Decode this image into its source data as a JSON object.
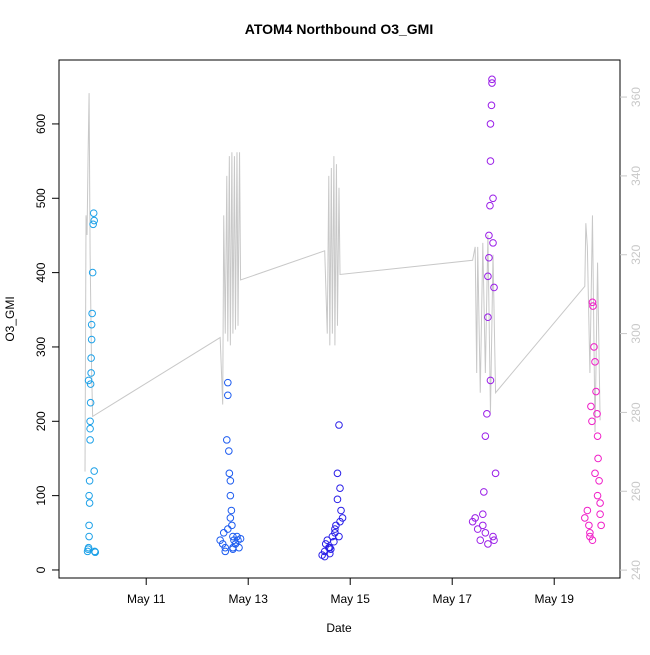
{
  "chart_data": {
    "type": "scatter",
    "title": "ATOM4 Northbound O3_GMI",
    "xlabel": "Date",
    "ylabel": "O3_GMI",
    "xlim": [
      9.29,
      20.29
    ],
    "xticks": [
      {
        "value": 11,
        "label": "May 11"
      },
      {
        "value": 13,
        "label": "May 13"
      },
      {
        "value": 15,
        "label": "May 15"
      },
      {
        "value": 17,
        "label": "May 17"
      },
      {
        "value": 19,
        "label": "May 19"
      }
    ],
    "ylim": [
      -10.8,
      686
    ],
    "yticks": [
      0,
      100,
      200,
      300,
      400,
      500,
      600
    ],
    "y2lim": [
      238,
      369.4
    ],
    "y2ticks": [
      240,
      260,
      280,
      300,
      320,
      340,
      360
    ],
    "series": [
      {
        "type": "scatter",
        "color": "#1da1e8",
        "x": [
          9.85,
          9.86,
          9.87,
          9.88,
          9.88,
          9.89,
          9.89,
          9.9,
          9.9,
          9.91,
          9.91,
          9.92,
          9.92,
          9.93,
          9.93,
          9.94,
          9.95,
          9.96,
          9.97,
          9.98,
          9.98,
          9.99,
          10.0,
          10.0,
          9.87,
          9.88,
          9.9
        ],
        "values": [
          25,
          28,
          30,
          45,
          60,
          90,
          120,
          175,
          200,
          225,
          250,
          265,
          285,
          310,
          330,
          345,
          400,
          465,
          480,
          470,
          133,
          25,
          24,
          24,
          255,
          100,
          190
        ]
      },
      {
        "type": "scatter",
        "color": "#1d5cf0",
        "x": [
          12.45,
          12.5,
          12.52,
          12.55,
          12.58,
          12.6,
          12.6,
          12.62,
          12.63,
          12.65,
          12.65,
          12.67,
          12.68,
          12.7,
          12.7,
          12.72,
          12.75,
          12.78,
          12.8,
          12.82,
          12.85,
          12.55,
          12.6,
          12.65,
          12.7
        ],
        "values": [
          40,
          35,
          50,
          30,
          175,
          252,
          235,
          160,
          130,
          120,
          100,
          80,
          60,
          45,
          30,
          40,
          35,
          45,
          40,
          30,
          42,
          25,
          55,
          70,
          28
        ]
      },
      {
        "type": "scatter",
        "color": "#2a1fe8",
        "x": [
          14.45,
          14.5,
          14.52,
          14.55,
          14.58,
          14.6,
          14.62,
          14.65,
          14.68,
          14.7,
          14.72,
          14.75,
          14.78,
          14.8,
          14.82,
          14.85,
          14.75,
          14.7,
          14.6,
          14.5,
          14.8,
          14.78
        ],
        "values": [
          20,
          25,
          35,
          40,
          30,
          22,
          28,
          45,
          38,
          50,
          60,
          130,
          195,
          110,
          80,
          70,
          95,
          55,
          30,
          18,
          65,
          45
        ]
      },
      {
        "type": "scatter",
        "color": "#9a1ee8",
        "x": [
          17.4,
          17.45,
          17.5,
          17.55,
          17.6,
          17.62,
          17.65,
          17.68,
          17.7,
          17.7,
          17.72,
          17.72,
          17.74,
          17.75,
          17.75,
          17.77,
          17.78,
          17.78,
          17.8,
          17.8,
          17.82,
          17.85,
          17.6,
          17.65,
          17.7,
          17.75,
          17.8,
          17.82
        ],
        "values": [
          65,
          70,
          55,
          40,
          60,
          105,
          180,
          210,
          340,
          395,
          420,
          450,
          490,
          550,
          600,
          625,
          660,
          655,
          500,
          440,
          380,
          130,
          75,
          50,
          35,
          255,
          45,
          40
        ]
      },
      {
        "type": "scatter",
        "color": "#f01ec8",
        "x": [
          19.6,
          19.65,
          19.68,
          19.7,
          19.72,
          19.74,
          19.75,
          19.76,
          19.78,
          19.8,
          19.82,
          19.84,
          19.85,
          19.86,
          19.88,
          19.9,
          19.92,
          19.7,
          19.75,
          19.8,
          19.85,
          19.9
        ],
        "values": [
          70,
          80,
          60,
          50,
          220,
          200,
          360,
          355,
          300,
          280,
          240,
          210,
          180,
          150,
          120,
          90,
          60,
          45,
          40,
          130,
          100,
          75
        ]
      },
      {
        "type": "line",
        "axis": "y2",
        "color": "#c8c8c8",
        "x": [
          9.8,
          9.82,
          9.84,
          9.86,
          9.88,
          9.9,
          9.93,
          9.95,
          12.45,
          12.5,
          12.52,
          12.55,
          12.58,
          12.6,
          12.63,
          12.65,
          12.68,
          12.7,
          12.73,
          12.75,
          12.78,
          12.8,
          12.83,
          12.85,
          14.5,
          14.55,
          14.58,
          14.6,
          14.63,
          14.65,
          14.68,
          14.7,
          14.73,
          14.75,
          14.78,
          14.8,
          17.4,
          17.45,
          17.48,
          17.5,
          17.55,
          17.6,
          17.65,
          17.7,
          17.75,
          17.8,
          17.85,
          19.6,
          19.62,
          19.65,
          19.7,
          19.75,
          19.8,
          19.85,
          19.9
        ],
        "values": [
          265,
          330,
          325,
          345,
          361,
          320,
          290,
          279,
          299,
          282,
          330,
          300,
          340,
          298,
          345,
          297,
          346,
          300,
          345,
          301,
          346,
          302,
          346,
          313.6,
          321,
          300,
          340,
          297,
          342,
          300,
          345,
          297,
          343,
          302,
          337,
          315,
          318.6,
          322,
          290,
          322,
          285,
          323,
          290,
          325,
          280,
          320,
          285,
          312,
          328,
          322,
          290,
          330,
          275,
          318,
          278
        ]
      }
    ]
  }
}
